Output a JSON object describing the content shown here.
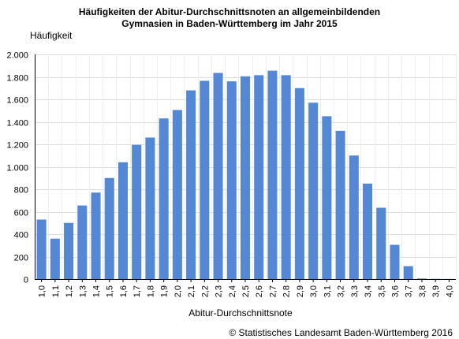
{
  "chart_data": {
    "type": "bar",
    "title_line1": "Häufigkeiten der Abitur-Durchschnittsnoten an allgemeinbildenden",
    "title_line2": "Gymnasien in Baden-Württemberg im Jahr 2015",
    "ylabel": "Häufigkeit",
    "xlabel": "Abitur-Durchschnittsnote",
    "categories": [
      "1,0",
      "1,1",
      "1,2",
      "1,3",
      "1,4",
      "1,5",
      "1,6",
      "1,7",
      "1,8",
      "1,9",
      "2,0",
      "2,1",
      "2,2",
      "2,3",
      "2,4",
      "2,5",
      "2,6",
      "2,7",
      "2,8",
      "2,9",
      "3,0",
      "3,1",
      "3,2",
      "3,3",
      "3,4",
      "3,5",
      "3,6",
      "3,7",
      "3,8",
      "3,9",
      "4,0"
    ],
    "values": [
      530,
      360,
      500,
      655,
      770,
      900,
      1040,
      1195,
      1260,
      1430,
      1505,
      1680,
      1765,
      1835,
      1760,
      1805,
      1815,
      1855,
      1815,
      1700,
      1570,
      1450,
      1320,
      1100,
      850,
      635,
      305,
      115,
      5,
      2,
      1
    ],
    "ylim": [
      0,
      2000
    ],
    "yticks": [
      0,
      200,
      400,
      600,
      800,
      1000,
      1200,
      1400,
      1600,
      1800,
      2000
    ],
    "ytick_labels": [
      "0",
      "200",
      "400",
      "600",
      "800",
      "1.000",
      "1.200",
      "1.400",
      "1.600",
      "1.800",
      "2.000"
    ],
    "bar_color": "#5588d4",
    "grid": true,
    "grid_color": "#dddddd"
  },
  "footer": {
    "copyright": "© Statistisches Landesamt Baden-Württemberg 2016"
  }
}
